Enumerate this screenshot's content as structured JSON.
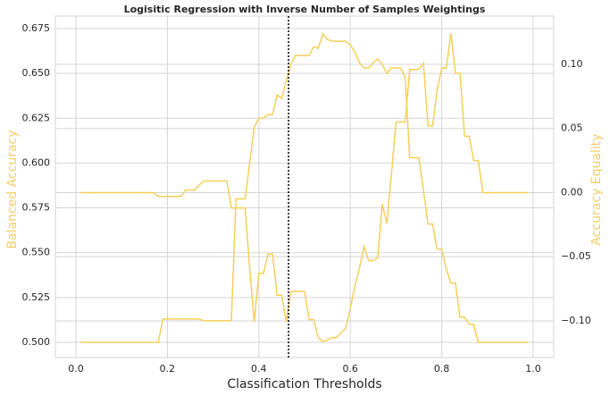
{
  "chart_data": {
    "type": "line",
    "title": "Logisitic Regression with Inverse Number of Samples Weightings",
    "x_label": "Classification Thresholds",
    "y_label": "Balanced Accuracy",
    "y2_label": "Accuracy Equality",
    "label_color": "#f2cd6a",
    "x": [
      0.01,
      0.02,
      0.03,
      0.04,
      0.05,
      0.06,
      0.07,
      0.08,
      0.09,
      0.1,
      0.11,
      0.12,
      0.13,
      0.14,
      0.15,
      0.16,
      0.17,
      0.18,
      0.19,
      0.2,
      0.21,
      0.22,
      0.23,
      0.24,
      0.25,
      0.26,
      0.27,
      0.28,
      0.29,
      0.3,
      0.31,
      0.32,
      0.33,
      0.34,
      0.35,
      0.36,
      0.37,
      0.38,
      0.39,
      0.4,
      0.41,
      0.42,
      0.43,
      0.44,
      0.45,
      0.46,
      0.47,
      0.48,
      0.49,
      0.5,
      0.51,
      0.52,
      0.53,
      0.54,
      0.55,
      0.56,
      0.57,
      0.58,
      0.59,
      0.6,
      0.61,
      0.62,
      0.63,
      0.64,
      0.65,
      0.66,
      0.67,
      0.68,
      0.69,
      0.7,
      0.71,
      0.72,
      0.73,
      0.74,
      0.75,
      0.76,
      0.77,
      0.78,
      0.79,
      0.8,
      0.81,
      0.82,
      0.83,
      0.84,
      0.85,
      0.86,
      0.87,
      0.88,
      0.89,
      0.9,
      0.91,
      0.92,
      0.93,
      0.94,
      0.95,
      0.96,
      0.97,
      0.98,
      0.99
    ],
    "series": [
      {
        "name": "Balanced Accuracy",
        "color": "#f5cf5a",
        "axis": "y",
        "values": [
          0.5,
          0.5,
          0.5,
          0.5,
          0.5,
          0.5,
          0.5,
          0.5,
          0.5,
          0.5,
          0.5,
          0.5,
          0.5,
          0.5,
          0.5,
          0.5,
          0.5,
          0.5,
          0.513,
          0.513,
          0.513,
          0.513,
          0.513,
          0.513,
          0.513,
          0.513,
          0.513,
          0.512,
          0.512,
          0.512,
          0.512,
          0.512,
          0.512,
          0.512,
          0.58,
          0.58,
          0.58,
          0.6,
          0.62,
          0.625,
          0.625,
          0.627,
          0.627,
          0.638,
          0.636,
          0.646,
          0.655,
          0.66,
          0.66,
          0.66,
          0.66,
          0.665,
          0.664,
          0.672,
          0.669,
          0.668,
          0.668,
          0.668,
          0.668,
          0.666,
          0.662,
          0.656,
          0.653,
          0.653,
          0.656,
          0.658,
          0.655,
          0.65,
          0.653,
          0.653,
          0.653,
          0.648,
          0.603,
          0.603,
          0.603,
          0.585,
          0.566,
          0.566,
          0.552,
          0.552,
          0.541,
          0.533,
          0.533,
          0.514,
          0.514,
          0.51,
          0.51,
          0.5,
          0.5,
          0.5,
          0.5,
          0.5,
          0.5,
          0.5,
          0.5,
          0.5,
          0.5,
          0.5,
          0.5
        ]
      },
      {
        "name": "Accuracy Equality",
        "color": "#f5cf5a",
        "axis": "y2",
        "values": [
          0,
          0,
          0,
          0,
          0,
          0,
          0,
          0,
          0,
          0,
          0,
          0,
          0,
          0,
          0,
          0,
          0,
          -0.003,
          -0.003,
          -0.003,
          -0.003,
          -0.003,
          -0.003,
          0.002,
          0.002,
          0.002,
          0.006,
          0.009,
          0.009,
          0.009,
          0.009,
          0.009,
          0.009,
          -0.012,
          -0.012,
          -0.012,
          -0.012,
          -0.059,
          -0.101,
          -0.063,
          -0.063,
          -0.048,
          -0.048,
          -0.08,
          -0.08,
          -0.101,
          -0.077,
          -0.077,
          -0.077,
          -0.077,
          -0.099,
          -0.099,
          -0.113,
          -0.116,
          -0.115,
          -0.113,
          -0.113,
          -0.109,
          -0.106,
          -0.09,
          -0.073,
          -0.059,
          -0.042,
          -0.053,
          -0.053,
          -0.051,
          -0.009,
          -0.024,
          0.014,
          0.055,
          0.055,
          0.055,
          0.096,
          0.096,
          0.096,
          0.101,
          0.052,
          0.052,
          0.08,
          0.097,
          0.097,
          0.124,
          0.093,
          0.093,
          0.044,
          0.044,
          0.025,
          0.025,
          0,
          0,
          0,
          0,
          0,
          0,
          0,
          0,
          0,
          0,
          0
        ]
      }
    ],
    "xlim": [
      -0.045,
      1.045
    ],
    "xticks": [
      {
        "value": 0,
        "label": "0.0"
      },
      0.2,
      0.4,
      0.6,
      0.8,
      {
        "value": 1,
        "label": "1.0"
      }
    ],
    "ylim": [
      0.4915,
      0.682
    ],
    "yticks": [
      {
        "value": 0.5,
        "label": "0.500"
      },
      0.525,
      {
        "value": 0.55,
        "label": "0.550"
      },
      0.575,
      {
        "value": 0.6,
        "label": "0.600"
      },
      0.625,
      {
        "value": 0.65,
        "label": "0.650"
      },
      0.675
    ],
    "y2lim": [
      -0.1286,
      0.1376
    ],
    "y2ticks": [
      {
        "value": -0.1,
        "label": "−0.10"
      },
      {
        "value": -0.05,
        "label": "−0.05"
      },
      {
        "value": 0,
        "label": "0.00"
      },
      0.05,
      {
        "value": 0.1,
        "label": "0.10"
      }
    ],
    "vline": 0.465,
    "vline_color": "#000000",
    "grid": true
  }
}
